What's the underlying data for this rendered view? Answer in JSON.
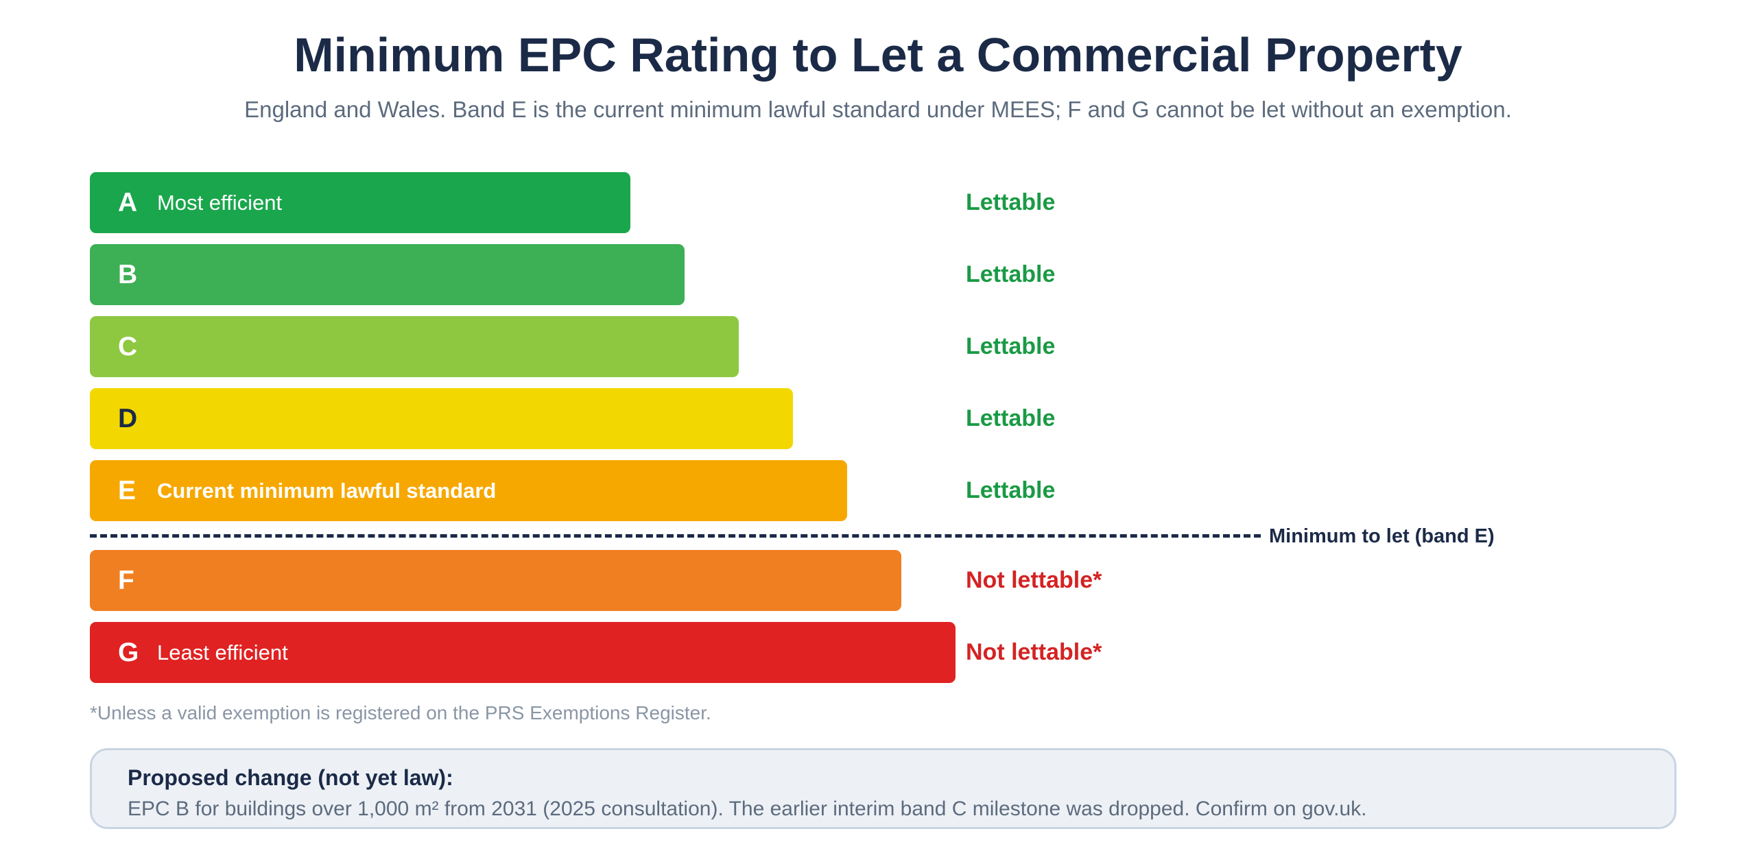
{
  "title": "Minimum EPC Rating to Let a Commercial Property",
  "subtitle": "England and Wales. Band E is the current minimum lawful standard under MEES; F and G cannot be let without an exemption.",
  "bands": [
    {
      "letter": "A",
      "description": "Most efficient",
      "status": "Lettable",
      "color": "#1aa64c",
      "letter_color": "#ffffff",
      "status_color": "#1a9a45"
    },
    {
      "letter": "B",
      "description": "",
      "status": "Lettable",
      "color": "#3daf55",
      "letter_color": "#ffffff",
      "status_color": "#1a9a45"
    },
    {
      "letter": "C",
      "description": "",
      "status": "Lettable",
      "color": "#8dc840",
      "letter_color": "#ffffff",
      "status_color": "#1a9a45"
    },
    {
      "letter": "D",
      "description": "",
      "status": "Lettable",
      "color": "#f2d800",
      "letter_color": "#1b2a47",
      "status_color": "#1a9a45"
    },
    {
      "letter": "E",
      "description": "Current minimum lawful standard",
      "status": "Lettable",
      "color": "#f7a800",
      "letter_color": "#ffffff",
      "status_color": "#1a9a45"
    },
    {
      "letter": "F",
      "description": "",
      "status": "Not lettable*",
      "color": "#f07f22",
      "letter_color": "#ffffff",
      "status_color": "#d42323"
    },
    {
      "letter": "G",
      "description": "Least efficient",
      "status": "Not lettable*",
      "color": "#e02222",
      "letter_color": "#ffffff",
      "status_color": "#d42323"
    }
  ],
  "threshold_label": "Minimum to let (band E)",
  "footnote": "*Unless a valid exemption is registered on the PRS Exemptions Register.",
  "proposal": {
    "heading": "Proposed change (not yet law):",
    "text": "EPC B for buildings over 1,000 m² from 2031 (2025 consultation). The earlier interim band C milestone was dropped. Confirm on gov.uk."
  }
}
